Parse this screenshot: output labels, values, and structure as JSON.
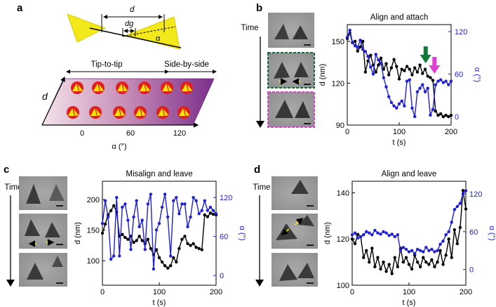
{
  "panels": {
    "a": "a",
    "b": "b",
    "c": "c",
    "d": "d"
  },
  "schematic": {
    "d_label": "d",
    "dg_label": "dg",
    "alpha_symbol": "α",
    "tip_to_tip": "Tip-to-tip",
    "side_by_side": "Side-by-side",
    "ylabel": "d",
    "xlabel": "α (°)",
    "xticks": [
      "0",
      "60",
      "120"
    ]
  },
  "time_label": "Time",
  "colors": {
    "black": "#000000",
    "blue": "#1f1fd6",
    "green": "#117a3a",
    "magenta": "#e040d0",
    "yellow": "#ffe600",
    "red": "#d81c1c"
  },
  "chart_data": [
    {
      "id": "b",
      "type": "line",
      "title": "Align and attach",
      "xlabel": "t (s)",
      "ylabel": "d (nm)",
      "y2label": "α (°)",
      "xlim": [
        0,
        200
      ],
      "ylim": [
        90,
        162
      ],
      "y2lim": [
        -12,
        130
      ],
      "xticks": [
        0,
        100,
        200
      ],
      "yticks": [
        90,
        120,
        150
      ],
      "y2ticks": [
        0,
        60,
        120
      ],
      "annotations": [
        "green-arrow",
        "magenta-arrow"
      ],
      "series": [
        {
          "axis": "left",
          "color": "#000000",
          "x": [
            0,
            5,
            10,
            15,
            20,
            25,
            30,
            35,
            40,
            45,
            50,
            55,
            60,
            65,
            70,
            75,
            80,
            85,
            90,
            95,
            100,
            105,
            110,
            115,
            120,
            125,
            130,
            135,
            140,
            145,
            150,
            155,
            160,
            165,
            170,
            175,
            180,
            185,
            190,
            195,
            200
          ],
          "y": [
            152,
            156,
            149,
            150,
            143,
            146,
            150,
            128,
            136,
            140,
            133,
            128,
            133,
            138,
            130,
            134,
            126,
            131,
            137,
            132,
            123,
            130,
            129,
            132,
            130,
            126,
            131,
            128,
            133,
            127,
            130,
            125,
            124,
            122,
            100,
            97,
            98,
            96,
            97,
            96,
            97
          ]
        },
        {
          "axis": "right",
          "color": "#1f1fd6",
          "x": [
            0,
            5,
            10,
            15,
            20,
            25,
            30,
            35,
            40,
            45,
            50,
            55,
            60,
            65,
            70,
            75,
            80,
            85,
            90,
            95,
            100,
            105,
            110,
            115,
            120,
            125,
            130,
            135,
            140,
            145,
            150,
            155,
            160,
            165,
            170,
            175,
            180,
            185,
            190,
            195,
            200
          ],
          "y": [
            112,
            122,
            105,
            100,
            98,
            108,
            95,
            92,
            85,
            70,
            60,
            88,
            80,
            75,
            55,
            42,
            28,
            20,
            15,
            12,
            18,
            22,
            15,
            50,
            52,
            12,
            0,
            35,
            40,
            45,
            35,
            40,
            2,
            10,
            45,
            50,
            52,
            48,
            50,
            45,
            50
          ]
        }
      ]
    },
    {
      "id": "c",
      "type": "line",
      "title": "Misalign and leave",
      "xlabel": "t (s)",
      "ylabel": "d (nm)",
      "y2label": "α (°)",
      "xlim": [
        0,
        200
      ],
      "ylim": [
        60,
        230
      ],
      "y2lim": [
        -15,
        145
      ],
      "xticks": [
        0,
        100,
        200
      ],
      "yticks": [
        100,
        150,
        200
      ],
      "y2ticks": [
        0,
        60,
        120
      ],
      "series": [
        {
          "axis": "left",
          "color": "#000000",
          "x": [
            0,
            5,
            10,
            15,
            20,
            25,
            30,
            35,
            40,
            45,
            50,
            55,
            60,
            65,
            70,
            75,
            80,
            85,
            90,
            95,
            100,
            105,
            110,
            115,
            120,
            125,
            130,
            135,
            140,
            145,
            150,
            155,
            160,
            165,
            170,
            175,
            180,
            185,
            190,
            195,
            200
          ],
          "y": [
            145,
            160,
            175,
            182,
            190,
            180,
            140,
            143,
            138,
            135,
            140,
            130,
            133,
            140,
            133,
            128,
            135,
            120,
            110,
            118,
            105,
            98,
            92,
            88,
            92,
            105,
            98,
            120,
            135,
            140,
            128,
            125,
            128,
            122,
            120,
            118,
            175,
            172,
            178,
            176,
            175
          ]
        },
        {
          "axis": "right",
          "color": "#1f1fd6",
          "x": [
            0,
            5,
            10,
            15,
            20,
            25,
            30,
            35,
            40,
            45,
            50,
            55,
            60,
            65,
            70,
            75,
            80,
            85,
            90,
            95,
            100,
            105,
            110,
            115,
            120,
            125,
            130,
            135,
            140,
            145,
            150,
            155,
            160,
            165,
            170,
            175,
            180,
            185,
            190,
            195,
            200
          ],
          "y": [
            80,
            115,
            90,
            25,
            30,
            120,
            30,
            105,
            110,
            85,
            40,
            90,
            115,
            75,
            85,
            40,
            110,
            125,
            10,
            70,
            80,
            105,
            125,
            90,
            30,
            115,
            120,
            95,
            110,
            110,
            75,
            90,
            120,
            115,
            95,
            100,
            115,
            100,
            105,
            100,
            95
          ]
        }
      ]
    },
    {
      "id": "d",
      "type": "line",
      "title": "Align and leave",
      "xlabel": "t (s)",
      "ylabel": "d (nm)",
      "y2label": "α (°)",
      "xlim": [
        0,
        200
      ],
      "ylim": [
        100,
        145
      ],
      "y2lim": [
        -25,
        140
      ],
      "xticks": [
        0,
        100,
        200
      ],
      "yticks": [
        100,
        120,
        140
      ],
      "y2ticks": [
        0,
        60,
        120
      ],
      "series": [
        {
          "axis": "left",
          "color": "#000000",
          "x": [
            0,
            5,
            10,
            15,
            20,
            25,
            30,
            35,
            40,
            45,
            50,
            55,
            60,
            65,
            70,
            75,
            80,
            85,
            90,
            95,
            100,
            105,
            110,
            115,
            120,
            125,
            130,
            135,
            140,
            145,
            150,
            155,
            160,
            165,
            170,
            175,
            180,
            185,
            190,
            195,
            200
          ],
          "y": [
            120,
            118,
            122,
            121,
            112,
            115,
            110,
            116,
            108,
            112,
            107,
            110,
            106,
            109,
            105,
            112,
            108,
            116,
            110,
            112,
            109,
            107,
            113,
            110,
            108,
            112,
            110,
            109,
            111,
            108,
            110,
            115,
            109,
            113,
            120,
            112,
            124,
            118,
            125,
            141,
            133
          ]
        },
        {
          "axis": "right",
          "color": "#1f1fd6",
          "x": [
            0,
            5,
            10,
            15,
            20,
            25,
            30,
            35,
            40,
            45,
            50,
            55,
            60,
            65,
            70,
            75,
            80,
            85,
            90,
            95,
            100,
            105,
            110,
            115,
            120,
            125,
            130,
            135,
            140,
            145,
            150,
            155,
            160,
            165,
            170,
            175,
            180,
            185,
            190,
            195,
            200
          ],
          "y": [
            55,
            58,
            50,
            52,
            55,
            60,
            58,
            55,
            62,
            58,
            56,
            60,
            58,
            54,
            56,
            52,
            55,
            30,
            35,
            32,
            28,
            30,
            25,
            32,
            30,
            28,
            35,
            30,
            32,
            28,
            30,
            40,
            45,
            55,
            60,
            75,
            95,
            100,
            105,
            120,
            125
          ]
        }
      ]
    }
  ]
}
